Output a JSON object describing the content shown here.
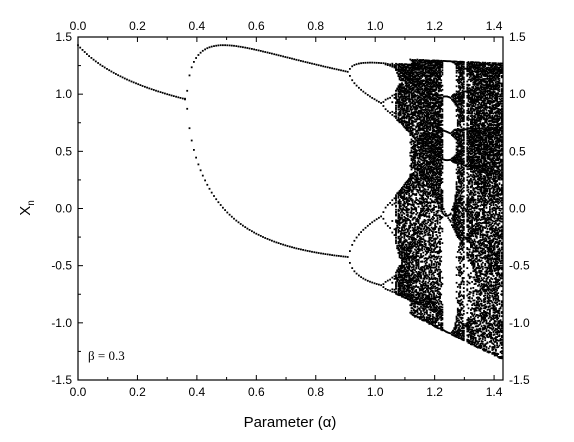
{
  "chart_data": {
    "type": "scatter",
    "xlabel": "Parameter (α)",
    "ylabel_main": "X",
    "ylabel_sub": "n",
    "xlim": [
      0.0,
      1.43
    ],
    "ylim": [
      -1.5,
      1.5
    ],
    "x_ticks": [
      "0.0",
      "0.2",
      "0.4",
      "0.6",
      "0.8",
      "1.0",
      "1.2",
      "1.4"
    ],
    "y_ticks": [
      "-1.5",
      "-1.0",
      "-0.5",
      "0.0",
      "0.5",
      "1.0",
      "1.5"
    ],
    "grid": false,
    "mirrored_axes": true,
    "annotation": "β = 0.3",
    "marker_color": "#000000",
    "series": [
      {
        "values": [
          [
            0.0,
            1.42
          ],
          [
            0.1,
            1.28
          ],
          [
            0.2,
            1.16
          ],
          [
            0.3,
            1.04
          ],
          [
            0.36,
            0.96
          ]
        ]
      },
      {
        "values": [
          [
            0.37,
            0.84
          ],
          [
            0.4,
            1.2
          ],
          [
            0.5,
            1.43
          ],
          [
            0.6,
            1.41
          ],
          [
            0.7,
            1.36
          ],
          [
            0.8,
            1.29
          ],
          [
            0.9,
            1.2
          ],
          [
            0.92,
            1.19
          ]
        ]
      },
      {
        "values": [
          [
            0.37,
            0.84
          ],
          [
            0.4,
            0.05
          ],
          [
            0.5,
            -0.25
          ],
          [
            0.6,
            -0.33
          ],
          [
            0.7,
            -0.37
          ],
          [
            0.8,
            -0.39
          ],
          [
            0.9,
            -0.42
          ],
          [
            0.92,
            -0.43
          ]
        ]
      }
    ],
    "chaotic_band": {
      "x_range": [
        1.07,
        1.43
      ],
      "y_range": [
        -1.3,
        1.3
      ],
      "periodic_windows": [
        [
          1.22,
          1.25
        ],
        [
          1.28,
          1.29
        ]
      ]
    }
  }
}
